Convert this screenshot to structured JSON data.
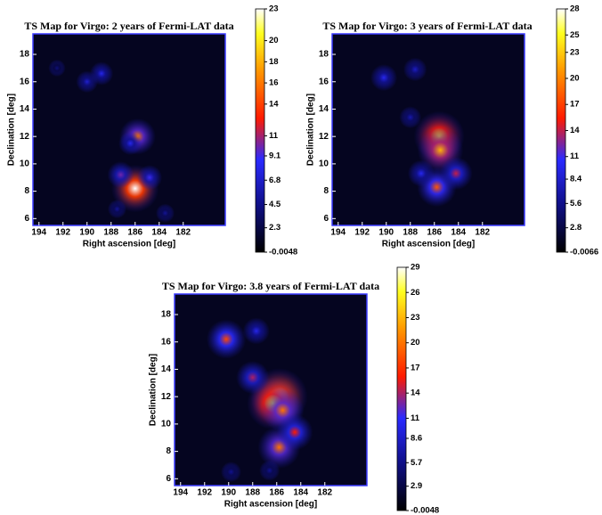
{
  "chart_data": [
    {
      "type": "heatmap",
      "title": "TS Map for Virgo: 2 years of Fermi-LAT data",
      "x_label": "Right ascension [deg]",
      "y_label": "Declination [deg]",
      "xlim": [
        194.5,
        178.5
      ],
      "ylim": [
        5.5,
        19.5
      ],
      "xticks": [
        194,
        192,
        190,
        188,
        186,
        184,
        182
      ],
      "yticks": [
        6,
        8,
        10,
        12,
        14,
        16,
        18
      ],
      "clim": [
        -0.0048,
        23
      ],
      "cticks": [
        -0.0048,
        2.3,
        4.5,
        6.8,
        9.1,
        11,
        14,
        16,
        18,
        20,
        23
      ],
      "x": [
        186,
        185.8,
        187.2,
        184.8,
        188.8,
        190,
        186.4,
        183.5,
        192.5,
        187.5
      ],
      "y": [
        8.2,
        12,
        9.2,
        9,
        16.6,
        16,
        11.5,
        6.4,
        17,
        6.7
      ],
      "values": [
        23,
        16,
        10,
        9,
        8,
        7,
        8,
        5,
        4,
        5
      ]
    },
    {
      "type": "heatmap",
      "title": "TS Map for Virgo: 3 years of Fermi-LAT data",
      "x_label": "Right ascension [deg]",
      "y_label": "Declination [deg]",
      "xlim": [
        194.5,
        178.5
      ],
      "ylim": [
        5.5,
        19.5
      ],
      "xticks": [
        194,
        192,
        190,
        188,
        186,
        184,
        182
      ],
      "yticks": [
        6,
        8,
        10,
        12,
        14,
        16,
        18
      ],
      "clim": [
        -0.0066,
        28
      ],
      "cticks": [
        -0.0066,
        2.8,
        5.6,
        8.4,
        11,
        14,
        17,
        20,
        23,
        25,
        28
      ],
      "x": [
        185.6,
        185.5,
        185.8,
        184.2,
        187.1,
        190.2,
        187.6,
        188
      ],
      "y": [
        12,
        11,
        8.3,
        9.3,
        9.3,
        16.3,
        16.9,
        13.4
      ],
      "values": [
        25,
        22,
        18,
        14,
        10,
        10,
        8,
        7
      ]
    },
    {
      "type": "heatmap",
      "title": "TS Map for Virgo: 3.8 years of Fermi-LAT data",
      "x_label": "Right ascension [deg]",
      "y_label": "Declination [deg]",
      "xlim": [
        194.5,
        178.5
      ],
      "ylim": [
        5.5,
        19.5
      ],
      "xticks": [
        194,
        192,
        190,
        188,
        186,
        184,
        182
      ],
      "yticks": [
        6,
        8,
        10,
        12,
        14,
        16,
        18
      ],
      "clim": [
        -0.0048,
        29
      ],
      "cticks": [
        -0.0048,
        2.9,
        5.7,
        8.6,
        11,
        14,
        17,
        20,
        23,
        26,
        29
      ],
      "x": [
        185.8,
        186.3,
        185.5,
        185.8,
        184.5,
        190.2,
        188,
        187.7,
        189.8,
        186.6
      ],
      "y": [
        12,
        11.5,
        11,
        8.3,
        9.4,
        16.2,
        13.4,
        16.8,
        6.5,
        6.6
      ],
      "values": [
        29,
        26,
        20,
        20,
        16,
        18,
        14,
        10,
        6,
        6
      ]
    }
  ]
}
